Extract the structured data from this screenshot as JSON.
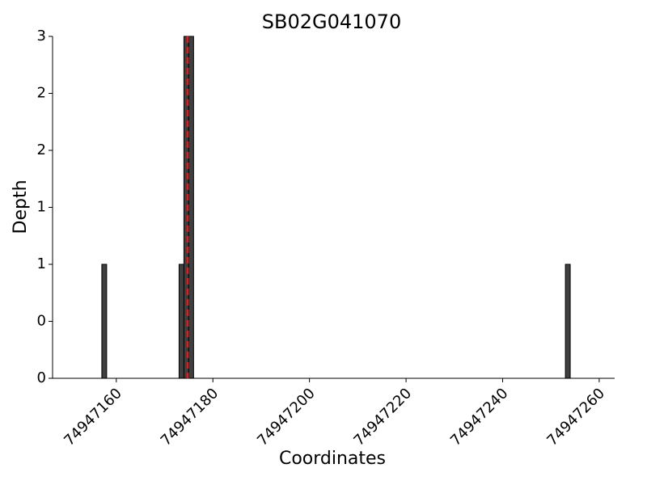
{
  "chart_data": {
    "type": "bar",
    "title": "SB02G041070",
    "x_label": "Coordinates",
    "y_label": "Depth",
    "x": [
      74947157,
      74947173,
      74947174,
      74947175,
      74947253
    ],
    "values": [
      1,
      1,
      3,
      3,
      1
    ],
    "color": "#404040",
    "vline": {
      "x": 74947174.8,
      "color": "#e41a1c"
    },
    "xlim": [
      74947146.8,
      74947263.2
    ],
    "xticks": [
      74947160,
      74947180,
      74947200,
      74947220,
      74947240,
      74947260
    ],
    "ylim": [
      0,
      3
    ],
    "yticks": [
      0,
      {
        "value": 0.5,
        "label": "0"
      },
      1,
      {
        "value": 1.5,
        "label": "1"
      },
      2,
      {
        "value": 2.5,
        "label": "2"
      },
      3
    ],
    "grid": false
  }
}
